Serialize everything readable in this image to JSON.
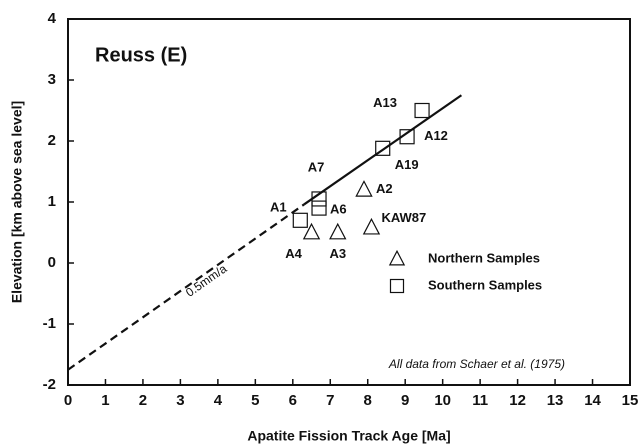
{
  "chart_data": {
    "type": "scatter",
    "title": "Reuss (E)",
    "x_label": "Apatite Fission Track Age [Ma]",
    "y_label": "Elevation [km above sea level]",
    "annotation": "All data from Schaer et al. (1975)",
    "xlim": [
      0,
      15
    ],
    "ylim": [
      -2,
      4
    ],
    "xticks": [
      0,
      1,
      2,
      3,
      4,
      5,
      6,
      7,
      8,
      9,
      10,
      11,
      12,
      13,
      14,
      15
    ],
    "yticks": [
      -2,
      -1,
      0,
      1,
      2,
      3,
      4
    ],
    "series": [
      {
        "name": "Northern Samples",
        "marker": "triangle",
        "color": "#111111",
        "labels": [
          "A4",
          "A3",
          "KAW87",
          "A2"
        ],
        "x": [
          6.5,
          7.2,
          8.1,
          7.9
        ],
        "values": [
          0.5,
          0.5,
          0.58,
          1.2
        ]
      },
      {
        "name": "Southern Samples",
        "marker": "square",
        "color": "#111111",
        "labels": [
          "A1",
          "A6",
          "A7",
          "A19",
          "A12",
          "A13"
        ],
        "x": [
          6.2,
          6.7,
          6.7,
          8.4,
          9.05,
          9.45
        ],
        "values": [
          0.7,
          0.9,
          1.05,
          1.88,
          2.07,
          2.5
        ]
      }
    ],
    "trend_line": {
      "label": "0.5mm/a",
      "dashed": {
        "x": [
          0,
          6.3
        ],
        "values": [
          -1.75,
          0.96
        ]
      },
      "solid": {
        "x": [
          6.3,
          10.5
        ],
        "values": [
          0.96,
          2.75
        ]
      }
    }
  }
}
